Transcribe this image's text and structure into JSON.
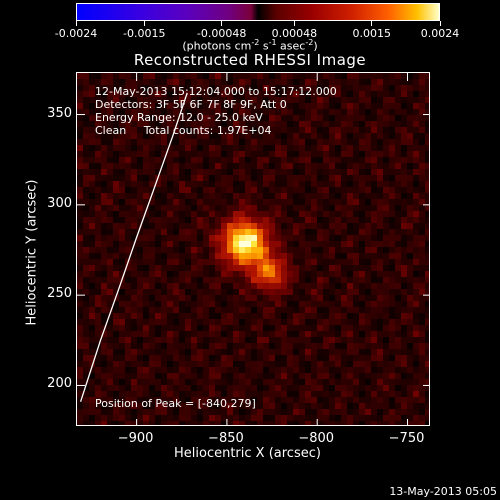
{
  "colorbar": {
    "tick_labels": [
      "-0.0024",
      "-0.0015",
      "-0.00048",
      "0.00048",
      "0.0015",
      "0.0024"
    ],
    "tick_values": [
      -0.0024,
      -0.0015,
      -0.00048,
      0.00048,
      0.0015,
      0.0024
    ],
    "range": [
      -0.0024,
      0.0024
    ],
    "unit_base": "(photons cm",
    "unit_exp1": "-2",
    "unit_mid1": " s",
    "unit_exp2": "-1",
    "unit_mid2": " asec",
    "unit_exp3": "-2",
    "unit_end": ")"
  },
  "chart_data": {
    "type": "heatmap",
    "title": "Reconstructed RHESSI Image",
    "xlabel": "Heliocentric X (arcsec)",
    "ylabel": "Heliocentric Y (arcsec)",
    "xlim": [
      -933,
      -737
    ],
    "ylim": [
      177,
      373
    ],
    "x_ticks": [
      -900,
      -850,
      -800,
      -750
    ],
    "x_tick_labels": [
      "−900",
      "−850",
      "−800",
      "−750"
    ],
    "y_ticks": [
      200,
      250,
      300,
      350
    ],
    "y_tick_labels": [
      "200",
      "250",
      "300",
      "350"
    ],
    "peak": [
      -840,
      279
    ],
    "limb_curve": [
      [
        -931,
        191
      ],
      [
        -920,
        225
      ],
      [
        -910,
        253
      ],
      [
        -900,
        282
      ],
      [
        -890,
        310
      ],
      [
        -880,
        338
      ],
      [
        -872,
        362
      ]
    ],
    "info": {
      "line1": "12-May-2013 15:12:04.000 to 15:17:12.000",
      "line2": "Detectors: 3F 5F 6F 7F 8F 9F, Att 0",
      "line3": "Energy Range: 12.0 - 25.0 keV",
      "line4": "Clean     Total counts: 1.97E+04",
      "peak_text": "Position of Peak = [-840,279]"
    }
  },
  "footer": {
    "timestamp": "13-May-2013 05:05"
  }
}
